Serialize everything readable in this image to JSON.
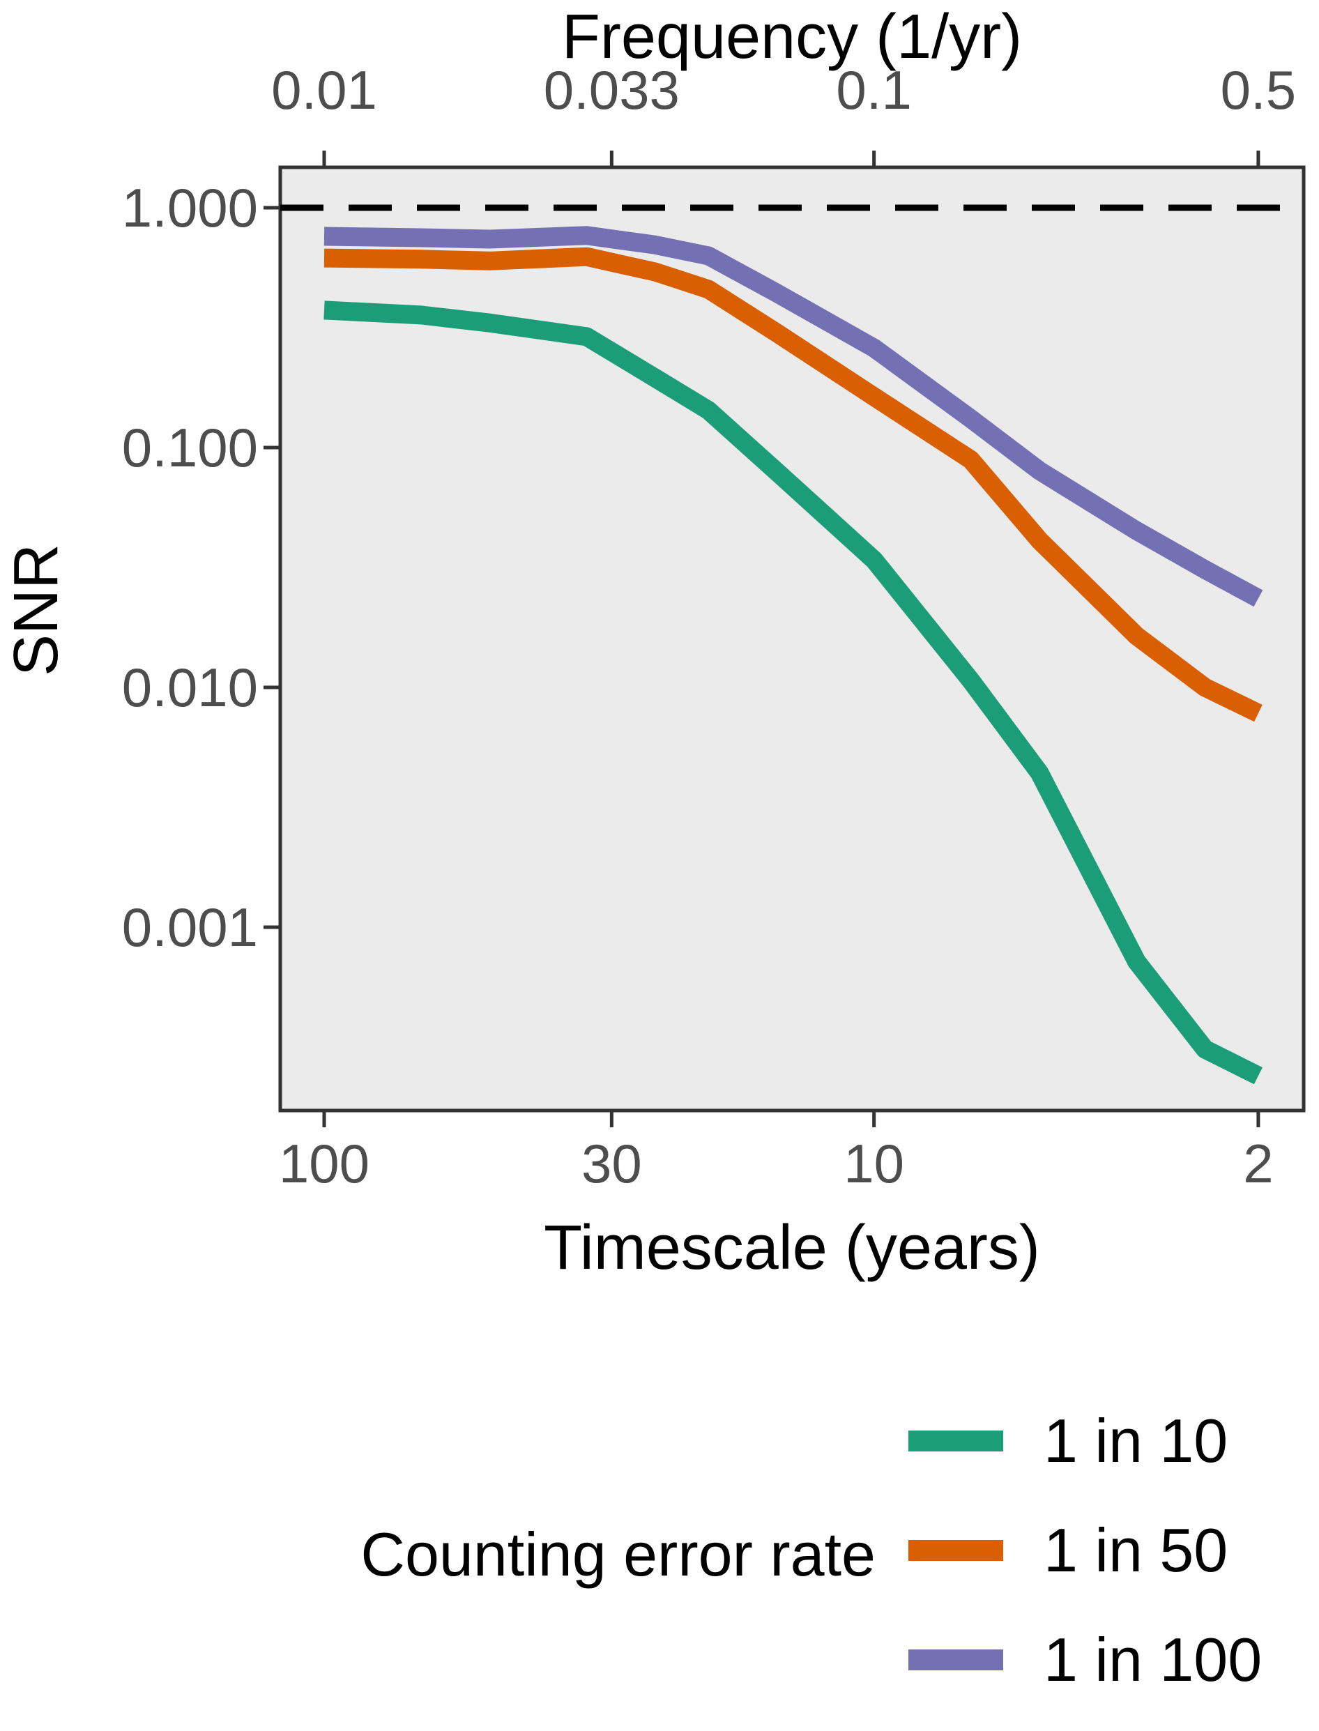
{
  "chart_data": {
    "type": "line",
    "top_axis": {
      "label": "Frequency (1/yr)",
      "ticks": [
        {
          "timescale": 100,
          "label": "0.01"
        },
        {
          "timescale": 30,
          "label": "0.033"
        },
        {
          "timescale": 10,
          "label": "0.1"
        },
        {
          "timescale": 2,
          "label": "0.5"
        }
      ]
    },
    "bottom_axis": {
      "label": "Timescale (years)",
      "ticks": [
        {
          "timescale": 100,
          "label": "100"
        },
        {
          "timescale": 30,
          "label": "30"
        },
        {
          "timescale": 10,
          "label": "10"
        },
        {
          "timescale": 2,
          "label": "2"
        }
      ]
    },
    "y_axis": {
      "label": "SNR",
      "ticks": [
        {
          "snr": 1.0,
          "label": "1.000"
        },
        {
          "snr": 0.1,
          "label": "0.100"
        },
        {
          "snr": 0.01,
          "label": "0.010"
        },
        {
          "snr": 0.001,
          "label": "0.001"
        }
      ]
    },
    "x_scale": "log, reversed timescale 100 to 2 years (frequency 0.01 to 0.5 per yr)",
    "y_scale": "log, SNR about 1.5 down to 0.00017",
    "reference_line": {
      "snr": 1.0,
      "style": "dashed",
      "color": "#000000"
    },
    "x_timescale": [
      100,
      66.7,
      50,
      33.3,
      25,
      20,
      15,
      10,
      6.67,
      5,
      3.33,
      2.5,
      2
    ],
    "series": [
      {
        "name": "1 in 10",
        "color": "#1b9e77",
        "snr": [
          0.374,
          0.357,
          0.331,
          0.29,
          0.195,
          0.143,
          0.079,
          0.034,
          0.0107,
          0.0044,
          0.00072,
          0.00031,
          0.00024
        ]
      },
      {
        "name": "1 in 50",
        "color": "#d95f02",
        "snr": [
          0.617,
          0.61,
          0.6,
          0.625,
          0.54,
          0.457,
          0.3,
          0.163,
          0.089,
          0.041,
          0.0164,
          0.01,
          0.0078
        ]
      },
      {
        "name": "1 in 100",
        "color": "#7570b3",
        "snr": [
          0.76,
          0.75,
          0.74,
          0.766,
          0.7,
          0.63,
          0.44,
          0.26,
          0.132,
          0.08,
          0.045,
          0.031,
          0.0235
        ]
      }
    ],
    "legend": {
      "title": "Counting error rate"
    },
    "panel_bg": "#ebebeb",
    "panel_border_color": "#333333",
    "tick_label_color": "#4d4d4d"
  }
}
